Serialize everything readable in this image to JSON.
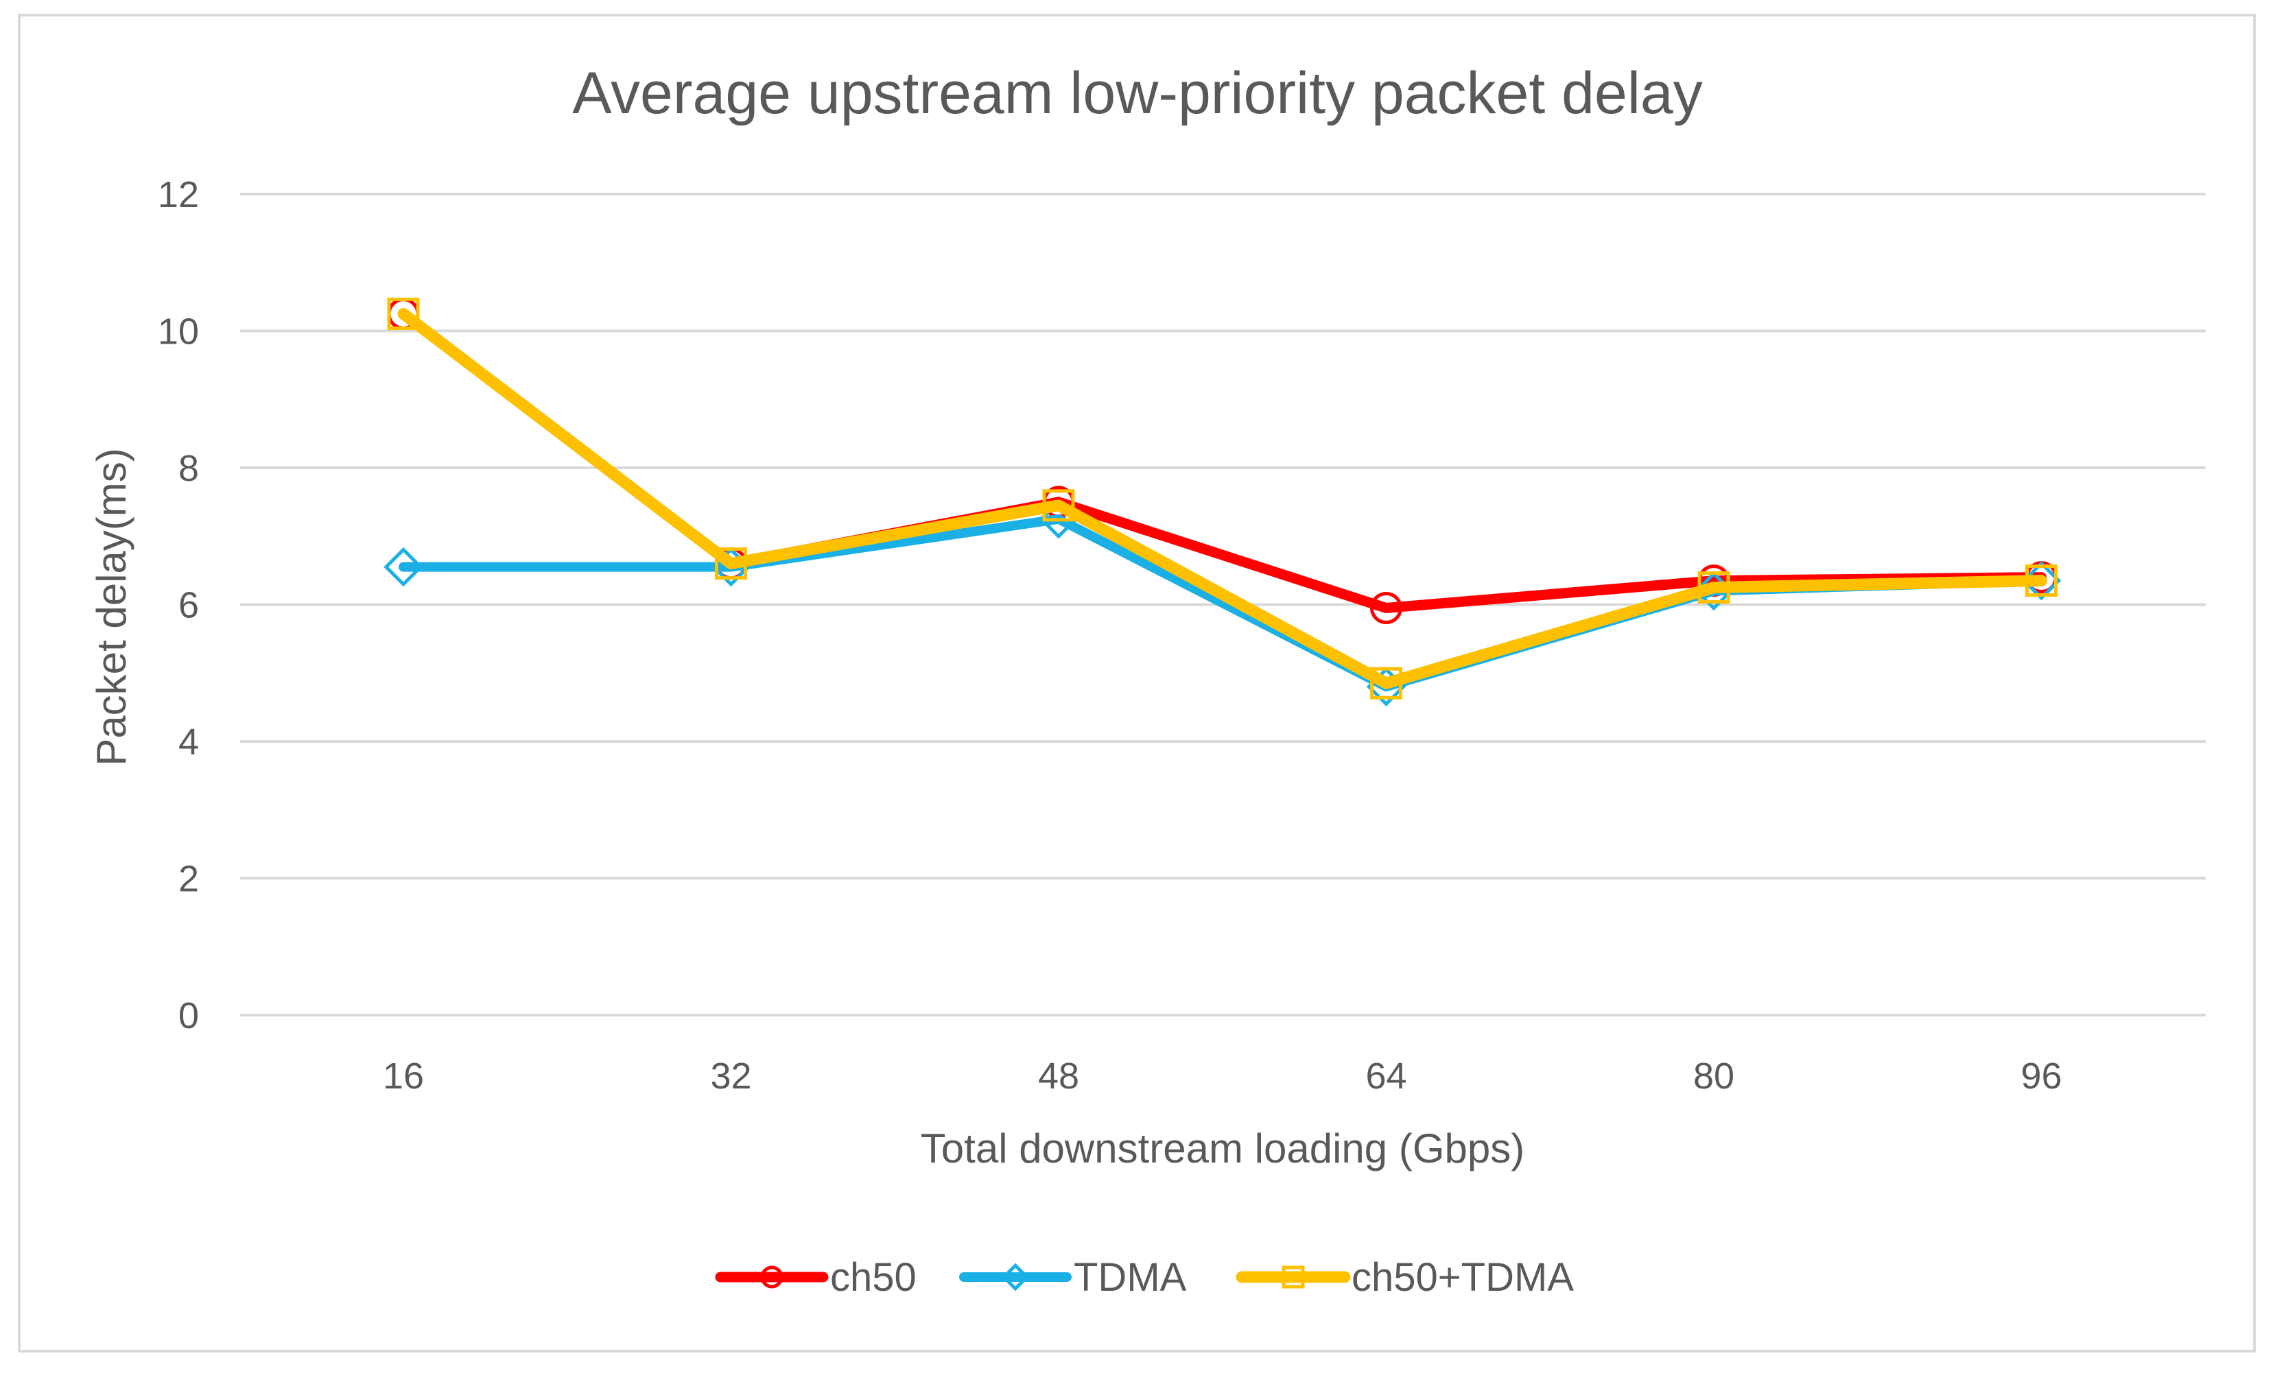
{
  "chart_data": {
    "type": "line",
    "title": "Average upstream low-priority packet delay",
    "xlabel": "Total downstream loading (Gbps)",
    "ylabel": "Packet delay(ms)",
    "categories": [
      "16",
      "32",
      "48",
      "64",
      "80",
      "96"
    ],
    "ylim": [
      0,
      12
    ],
    "yticks": [
      0,
      2,
      4,
      6,
      8,
      10,
      12
    ],
    "grid": true,
    "legend_position": "bottom",
    "series": [
      {
        "name": "ch50",
        "color": "#ff0000",
        "marker": "circle",
        "values": [
          10.25,
          6.6,
          7.5,
          5.95,
          6.35,
          6.4
        ]
      },
      {
        "name": "TDMA",
        "color": "#1ab0e6",
        "marker": "diamond",
        "values": [
          6.55,
          6.55,
          7.25,
          4.8,
          6.2,
          6.35
        ]
      },
      {
        "name": "ch50+TDMA",
        "color": "#ffc000",
        "marker": "square",
        "values": [
          10.25,
          6.6,
          7.45,
          4.85,
          6.25,
          6.35
        ]
      }
    ]
  }
}
